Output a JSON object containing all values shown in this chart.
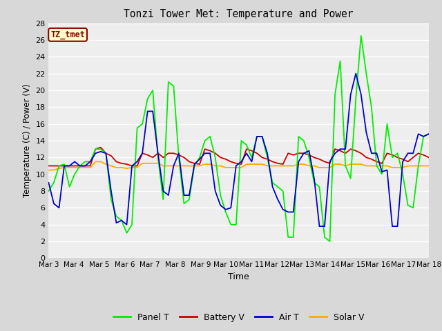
{
  "title": "Tonzi Tower Met: Temperature and Power",
  "xlabel": "Time",
  "ylabel": "Temperature (C) / Power (V)",
  "ylim": [
    0,
    28
  ],
  "yticks": [
    0,
    2,
    4,
    6,
    8,
    10,
    12,
    14,
    16,
    18,
    20,
    22,
    24,
    26,
    28
  ],
  "xtick_labels": [
    "Mar 3",
    "Mar 4",
    "Mar 5",
    "Mar 6",
    "Mar 7",
    "Mar 8",
    "Mar 9",
    "Mar 10",
    "Mar 11",
    "Mar 12",
    "Mar 13",
    "Mar 14",
    "Mar 15",
    "Mar 16",
    "Mar 17",
    "Mar 18"
  ],
  "plot_bg_color": "#eeeeee",
  "grid_color": "#ffffff",
  "outer_bg": "#d8d8d8",
  "annotation_text": "TZ_tmet",
  "annotation_bg": "#ffffcc",
  "annotation_border": "#8b0000",
  "annotation_text_color": "#8b0000",
  "legend_entries": [
    "Panel T",
    "Battery V",
    "Air T",
    "Solar V"
  ],
  "legend_colors": [
    "#00ee00",
    "#cc0000",
    "#0000cc",
    "#ffaa00"
  ],
  "line_width": 1.3,
  "panel_t": [
    8.0,
    9.0,
    11.0,
    11.2,
    8.5,
    10.0,
    11.0,
    11.5,
    11.5,
    13.0,
    13.0,
    12.5,
    7.0,
    5.0,
    4.5,
    3.0,
    4.0,
    15.5,
    16.0,
    19.0,
    20.0,
    12.0,
    7.0,
    21.0,
    20.5,
    12.0,
    6.5,
    7.0,
    11.0,
    12.0,
    14.0,
    14.5,
    12.0,
    7.5,
    5.5,
    4.0,
    4.0,
    14.0,
    13.5,
    12.0,
    14.5,
    14.5,
    12.0,
    9.0,
    8.5,
    8.0,
    2.5,
    2.5,
    14.5,
    14.0,
    12.0,
    9.0,
    8.5,
    2.5,
    2.0,
    19.5,
    23.5,
    11.0,
    9.5,
    19.0,
    26.5,
    22.0,
    18.0,
    11.0,
    10.0,
    16.0,
    12.0,
    12.5,
    10.0,
    6.3,
    6.0,
    11.0,
    14.5,
    14.8
  ],
  "battery_v": [
    11.0,
    11.0,
    11.0,
    11.0,
    11.0,
    11.0,
    11.0,
    11.0,
    11.0,
    13.0,
    13.2,
    12.5,
    12.2,
    11.5,
    11.3,
    11.2,
    11.0,
    11.0,
    12.5,
    12.3,
    12.0,
    12.5,
    12.0,
    12.5,
    12.5,
    12.3,
    12.0,
    11.5,
    11.3,
    11.2,
    13.0,
    12.8,
    12.5,
    12.0,
    11.8,
    11.5,
    11.3,
    11.2,
    13.0,
    12.8,
    12.5,
    12.0,
    11.8,
    11.5,
    11.3,
    11.2,
    12.5,
    12.3,
    12.5,
    12.5,
    12.3,
    12.0,
    11.8,
    11.5,
    11.3,
    13.0,
    12.8,
    12.5,
    13.0,
    12.8,
    12.5,
    12.0,
    11.8,
    11.5,
    11.3,
    12.5,
    12.3,
    12.0,
    11.8,
    11.5,
    12.0,
    12.5,
    12.3,
    12.0
  ],
  "air_t": [
    9.0,
    6.5,
    6.0,
    11.0,
    11.0,
    11.5,
    11.0,
    11.0,
    11.5,
    12.5,
    12.7,
    12.5,
    8.0,
    4.2,
    4.5,
    4.0,
    11.0,
    11.5,
    12.5,
    17.5,
    17.5,
    12.5,
    8.0,
    7.5,
    11.0,
    12.5,
    7.5,
    7.5,
    11.2,
    11.8,
    12.5,
    12.5,
    8.0,
    6.3,
    5.8,
    6.0,
    11.0,
    11.5,
    12.5,
    11.5,
    14.5,
    14.5,
    12.5,
    8.5,
    7.0,
    5.8,
    5.5,
    5.5,
    11.5,
    12.5,
    12.8,
    9.5,
    3.8,
    3.8,
    11.5,
    12.5,
    13.0,
    13.0,
    19.5,
    22.0,
    19.5,
    15.0,
    12.5,
    12.5,
    10.3,
    10.5,
    3.8,
    3.8,
    11.5,
    12.5,
    12.5,
    14.8,
    14.5,
    14.8
  ],
  "solar_v": [
    10.5,
    10.5,
    10.7,
    10.8,
    10.8,
    10.8,
    10.8,
    10.8,
    10.8,
    11.5,
    11.5,
    11.2,
    11.0,
    10.8,
    10.8,
    10.7,
    10.8,
    10.8,
    11.3,
    11.3,
    11.3,
    11.3,
    11.0,
    11.0,
    11.0,
    11.0,
    11.0,
    11.0,
    11.0,
    11.0,
    11.2,
    11.2,
    11.0,
    11.0,
    10.8,
    10.8,
    10.8,
    10.8,
    11.2,
    11.2,
    11.2,
    11.2,
    11.0,
    11.0,
    11.0,
    11.0,
    11.0,
    11.0,
    11.2,
    11.2,
    11.0,
    11.0,
    10.8,
    10.8,
    10.8,
    11.2,
    11.2,
    11.0,
    11.2,
    11.2,
    11.2,
    11.0,
    11.0,
    11.0,
    11.0,
    11.0,
    10.8,
    10.8,
    10.8,
    11.0,
    11.0,
    11.0,
    11.0,
    11.0
  ]
}
